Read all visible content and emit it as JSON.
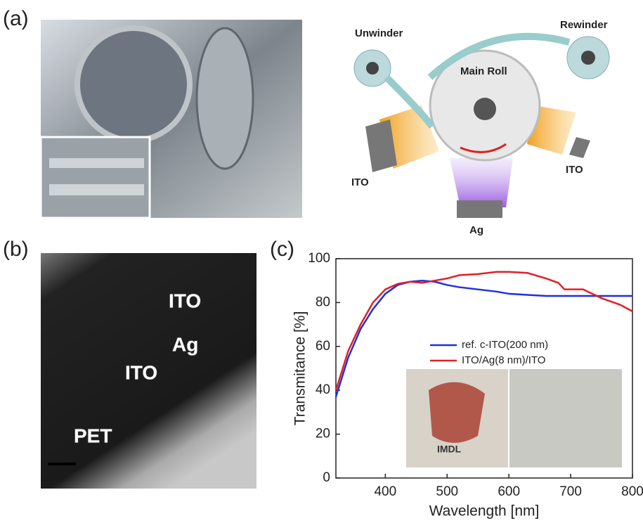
{
  "panel_labels": [
    "(a)",
    "(b)",
    "(c)"
  ],
  "schematic": {
    "unwinder": "Unwinder",
    "rewinder": "Rewinder",
    "main_roll": "Main Roll",
    "left_source": "ITO",
    "right_source": "ITO",
    "bottom_source": "Ag"
  },
  "tem": {
    "layers": [
      "ITO",
      "Ag",
      "ITO",
      "PET"
    ]
  },
  "inset_photo": {
    "logo": "IMDL"
  },
  "chart_data": {
    "type": "line",
    "xlabel": "Wavelength [nm]",
    "ylabel": "Transmitance [%]",
    "x": [
      320,
      340,
      360,
      380,
      400,
      420,
      440,
      460,
      480,
      500,
      520,
      550,
      580,
      600,
      630,
      660,
      680,
      690,
      720,
      750,
      780,
      800
    ],
    "series": [
      {
        "name": "ref. c-ITO(200 nm)",
        "color": "#1f2fe0",
        "values": [
          37,
          55,
          68,
          77,
          84,
          88,
          89.5,
          90,
          89.5,
          88,
          87,
          86,
          85,
          84,
          83.5,
          83,
          83,
          83,
          83,
          83,
          83,
          83
        ]
      },
      {
        "name": "ITO/Ag(8 nm)/ITO",
        "color": "#e0202a",
        "values": [
          40,
          58,
          70,
          80,
          86,
          88.5,
          89.5,
          89,
          90,
          91,
          92.5,
          93,
          94,
          94,
          93.5,
          91,
          89,
          86,
          86,
          82,
          79,
          76
        ]
      }
    ],
    "xlim": [
      320,
      800
    ],
    "xticks": [
      400,
      500,
      600,
      700,
      800
    ],
    "ylim": [
      0,
      100
    ],
    "yticks": [
      0,
      20,
      40,
      60,
      80,
      100
    ]
  }
}
